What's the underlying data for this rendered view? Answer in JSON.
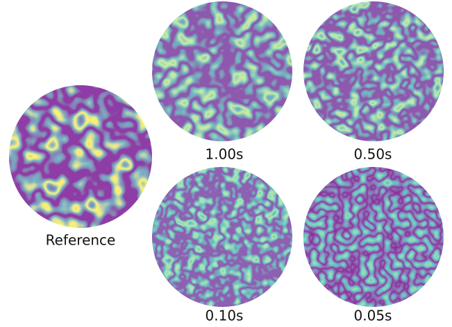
{
  "panels": [
    {
      "label": "Reference"
    },
    {
      "label": "1.00s"
    },
    {
      "label": "0.50s"
    },
    {
      "label": "0.10s"
    },
    {
      "label": "0.05s"
    }
  ]
}
